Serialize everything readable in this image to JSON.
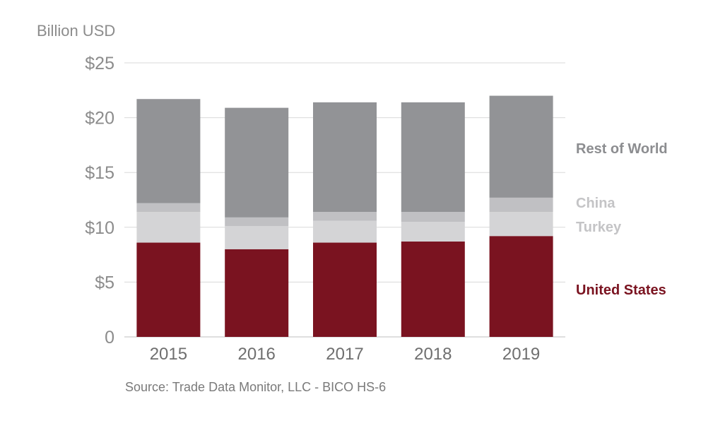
{
  "chart_data": {
    "type": "bar",
    "stacked": true,
    "ylabel": "Billion USD",
    "categories": [
      "2015",
      "2016",
      "2017",
      "2018",
      "2019"
    ],
    "ylim": [
      0,
      25
    ],
    "yticks": [
      0,
      5,
      10,
      15,
      20,
      25
    ],
    "ytick_labels": [
      "0",
      "$5",
      "$10",
      "$15",
      "$20",
      "$25"
    ],
    "grid": true,
    "legend_placement": "right",
    "series": [
      {
        "name": "United States",
        "color": "#7a1320",
        "values": [
          8.6,
          8.0,
          8.6,
          8.7,
          9.2
        ]
      },
      {
        "name": "Turkey",
        "color": "#d4d4d6",
        "values": [
          2.8,
          2.1,
          2.0,
          1.8,
          2.2
        ]
      },
      {
        "name": "China",
        "color": "#c0c0c3",
        "values": [
          0.8,
          0.8,
          0.8,
          0.9,
          1.3
        ]
      },
      {
        "name": "Rest of World",
        "color": "#929396",
        "values": [
          9.5,
          10.0,
          10.0,
          10.0,
          9.3
        ]
      }
    ],
    "source": "Source: Trade Data Monitor, LLC - BICO HS-6"
  }
}
